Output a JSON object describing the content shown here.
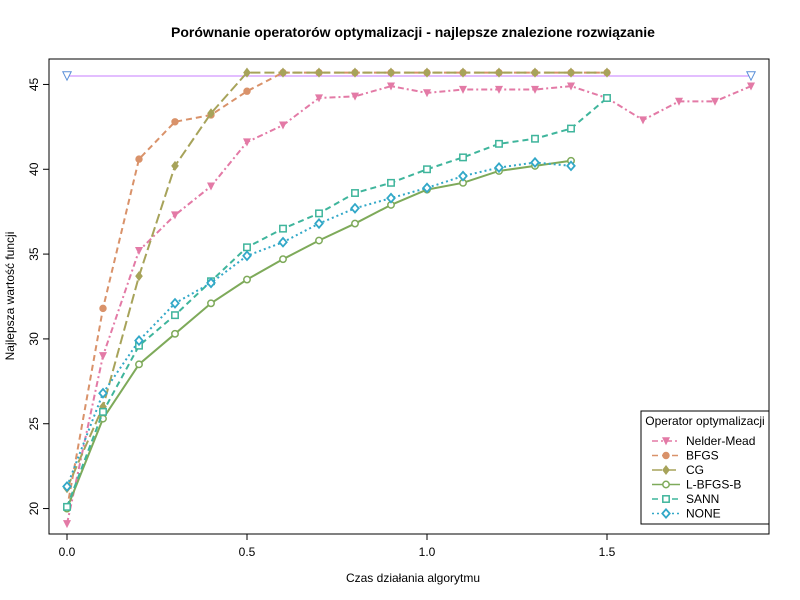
{
  "chart_data": {
    "type": "line",
    "title": "Porównanie operatorów optymalizacji - najlepsze znalezione rozwiązanie",
    "xlabel": "Czas działania algorytmu",
    "ylabel": "Najlepsza wartość funcji",
    "xlim": [
      -0.05,
      1.95
    ],
    "ylim": [
      18.5,
      46.5
    ],
    "xticks": [
      0.0,
      0.5,
      1.0,
      1.5
    ],
    "xtick_labels": [
      "0.0",
      "0.5",
      "1.0",
      "1.5"
    ],
    "yticks": [
      20,
      25,
      30,
      35,
      40,
      45
    ],
    "ytick_labels": [
      "20",
      "25",
      "30",
      "35",
      "40",
      "45"
    ],
    "grid": false,
    "legend": {
      "title": "Operator optymalizacji",
      "position": "bottom-right"
    },
    "reference_line": {
      "y": 45.5,
      "x_start": 0.0,
      "x_end": 1.9,
      "color": "#c77cff",
      "marker": "triangle-down"
    },
    "series": [
      {
        "name": "Nelder-Mead",
        "color": "#e37aa6",
        "dash": "dashdot",
        "marker": "triangle-down",
        "x": [
          0.0,
          0.1,
          0.2,
          0.3,
          0.4,
          0.5,
          0.6,
          0.7,
          0.8,
          0.9,
          1.0,
          1.1,
          1.2,
          1.3,
          1.4,
          1.5,
          1.6,
          1.7,
          1.8,
          1.9
        ],
        "y": [
          19.1,
          29.0,
          35.2,
          37.3,
          39.0,
          41.6,
          42.6,
          44.2,
          44.3,
          44.9,
          44.5,
          44.7,
          44.7,
          44.7,
          44.9,
          44.2,
          42.9,
          44.0,
          44.0,
          44.9
        ]
      },
      {
        "name": "BFGS",
        "color": "#d9926a",
        "dash": "dashed",
        "marker": "circle",
        "x": [
          0.0,
          0.1,
          0.2,
          0.3,
          0.4,
          0.5,
          0.6,
          0.7,
          0.8,
          0.9,
          1.0,
          1.1,
          1.2,
          1.3,
          1.4,
          1.5
        ],
        "y": [
          20.0,
          31.8,
          40.6,
          42.8,
          43.2,
          44.6,
          45.7,
          45.7,
          45.7,
          45.7,
          45.7,
          45.7,
          45.7,
          45.7,
          45.7,
          45.7
        ]
      },
      {
        "name": "CG",
        "color": "#a7a35a",
        "dash": "longdash",
        "marker": "diamond",
        "x": [
          0.0,
          0.1,
          0.2,
          0.3,
          0.4,
          0.5,
          0.6,
          0.7,
          0.8,
          0.9,
          1.0,
          1.1,
          1.2,
          1.3,
          1.4,
          1.5
        ],
        "y": [
          21.2,
          26.0,
          33.7,
          40.2,
          43.3,
          45.7,
          45.7,
          45.7,
          45.7,
          45.7,
          45.7,
          45.7,
          45.7,
          45.7,
          45.7,
          45.7
        ]
      },
      {
        "name": "L-BFGS-B",
        "color": "#7eaa5a",
        "dash": "solid",
        "marker": "circle-open",
        "x": [
          0.0,
          0.1,
          0.2,
          0.3,
          0.4,
          0.5,
          0.6,
          0.7,
          0.8,
          0.9,
          1.0,
          1.1,
          1.2,
          1.3,
          1.4
        ],
        "y": [
          20.0,
          25.3,
          28.5,
          30.3,
          32.1,
          33.5,
          34.7,
          35.8,
          36.8,
          37.9,
          38.8,
          39.2,
          39.9,
          40.2,
          40.5
        ]
      },
      {
        "name": "SANN",
        "color": "#3fb59c",
        "dash": "dashed",
        "marker": "square-open",
        "x": [
          0.0,
          0.1,
          0.2,
          0.3,
          0.4,
          0.5,
          0.6,
          0.7,
          0.8,
          0.9,
          1.0,
          1.1,
          1.2,
          1.3,
          1.4,
          1.5
        ],
        "y": [
          20.1,
          25.7,
          29.6,
          31.4,
          33.4,
          35.4,
          36.5,
          37.4,
          38.6,
          39.2,
          40.0,
          40.7,
          41.5,
          41.8,
          42.4,
          44.2
        ]
      },
      {
        "name": "NONE",
        "color": "#32a8c8",
        "dash": "dotted",
        "marker": "diamond-open",
        "x": [
          0.0,
          0.1,
          0.2,
          0.3,
          0.4,
          0.5,
          0.6,
          0.7,
          0.8,
          0.9,
          1.0,
          1.1,
          1.2,
          1.3,
          1.4
        ],
        "y": [
          21.3,
          26.8,
          29.9,
          32.1,
          33.3,
          34.9,
          35.7,
          36.8,
          37.7,
          38.3,
          38.9,
          39.6,
          40.1,
          40.4,
          40.2
        ]
      }
    ]
  }
}
